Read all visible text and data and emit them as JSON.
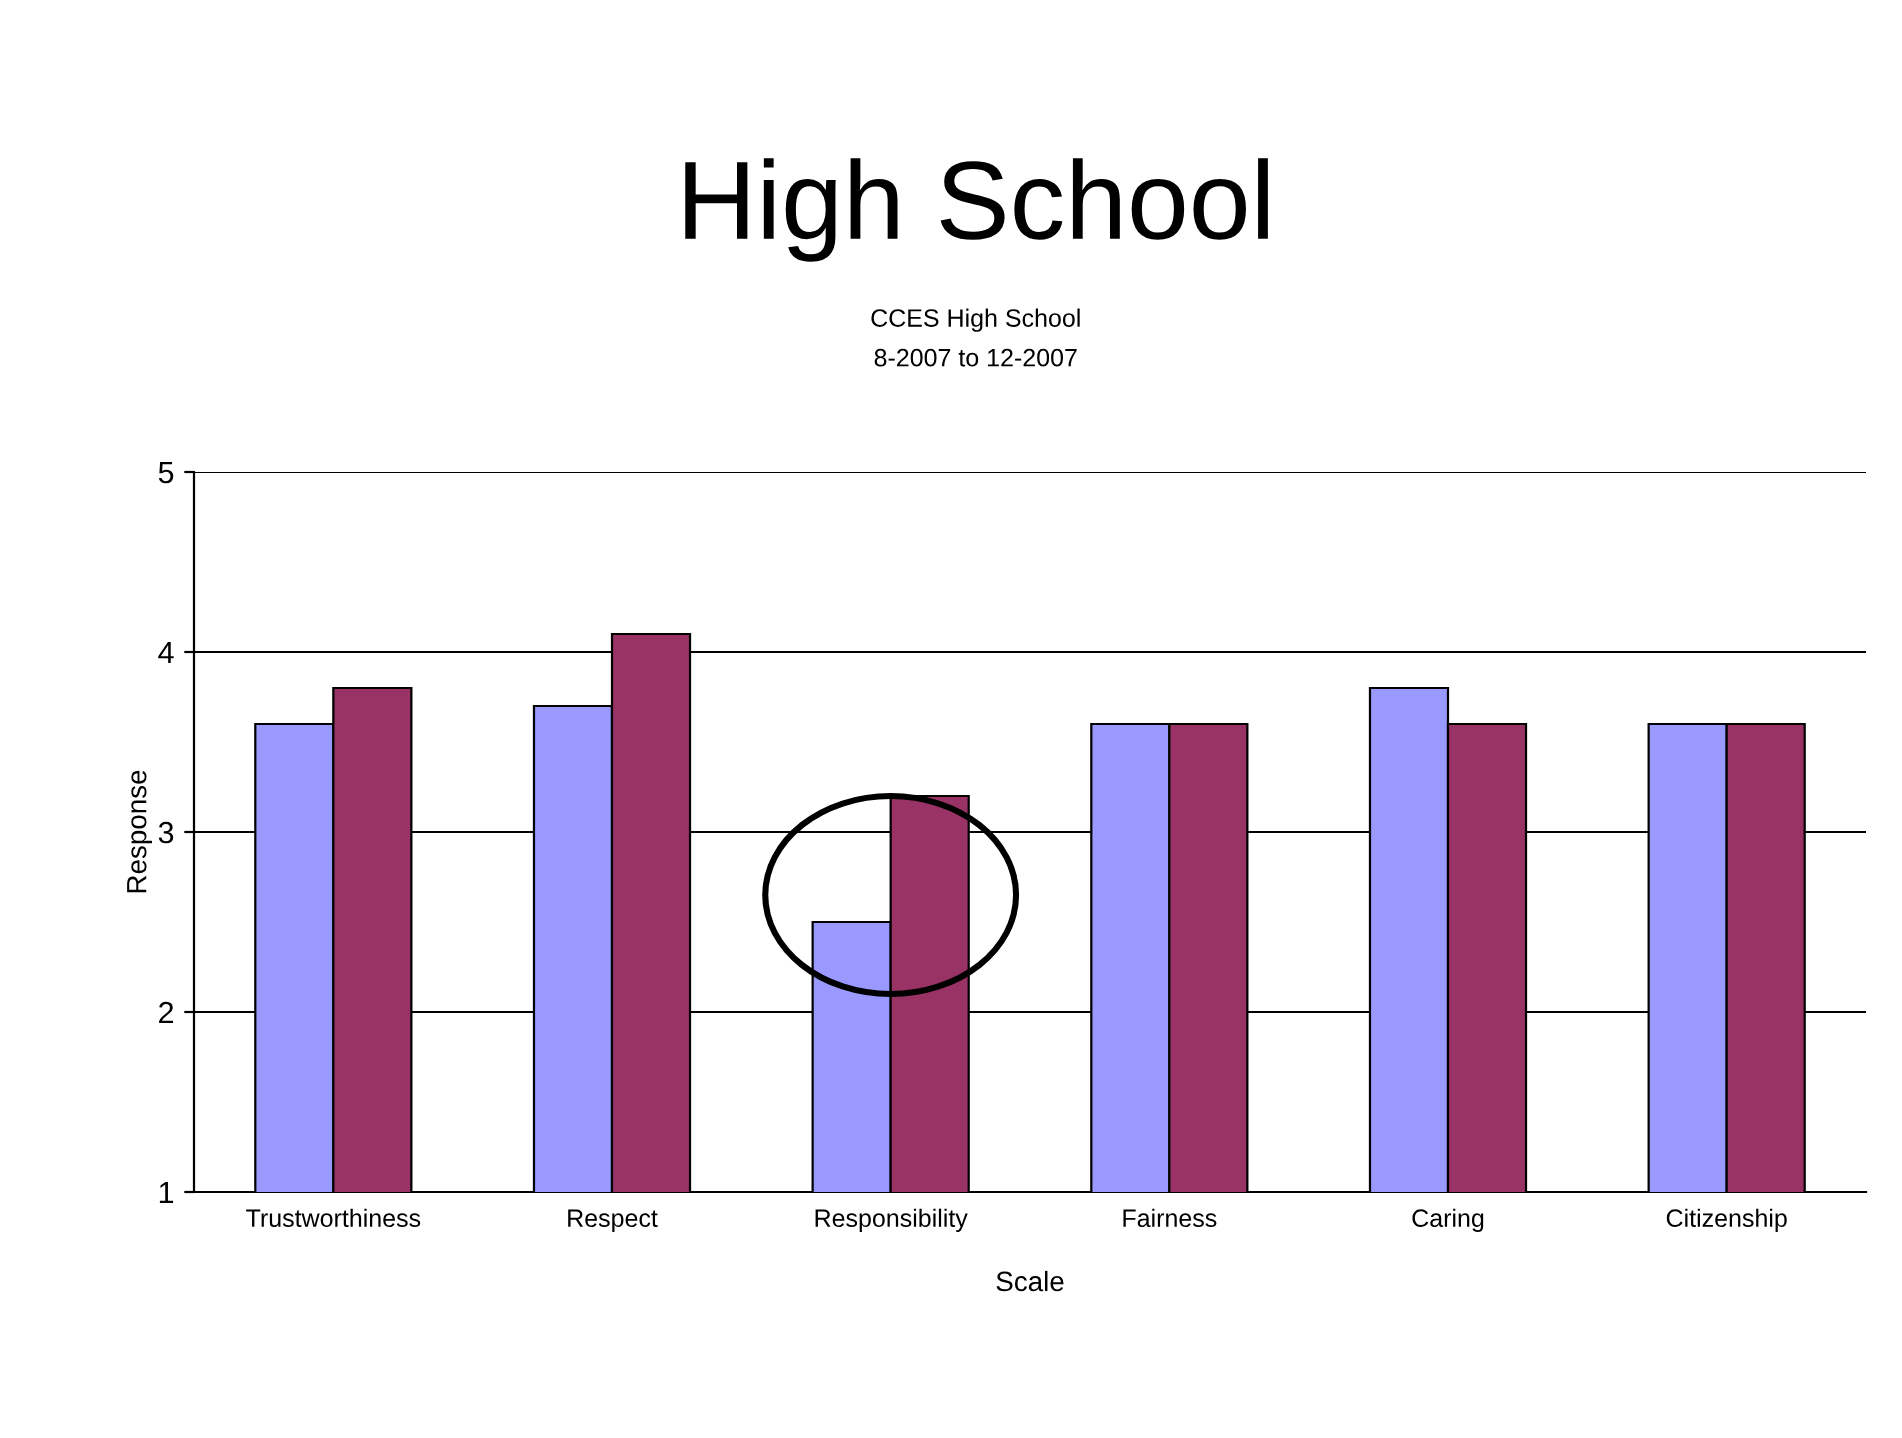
{
  "chart_data": {
    "type": "bar",
    "title": "High School",
    "subtitle": "CCES High School\n8-2007 to 12-2007",
    "xlabel": "Scale",
    "ylabel": "Response",
    "categories": [
      "Trustworthiness",
      "Respect",
      "Responsibility",
      "Fairness",
      "Caring",
      "Citizenship"
    ],
    "series": [
      {
        "color": "#9999ff",
        "values": [
          3.6,
          3.7,
          2.5,
          3.6,
          3.8,
          3.6
        ]
      },
      {
        "color": "#993366",
        "values": [
          3.8,
          4.1,
          3.2,
          3.6,
          3.6,
          3.6
        ]
      }
    ],
    "ylim": [
      1,
      5
    ],
    "yticks": [
      1,
      2,
      3,
      4,
      5
    ],
    "grid": "y",
    "legend": false
  }
}
